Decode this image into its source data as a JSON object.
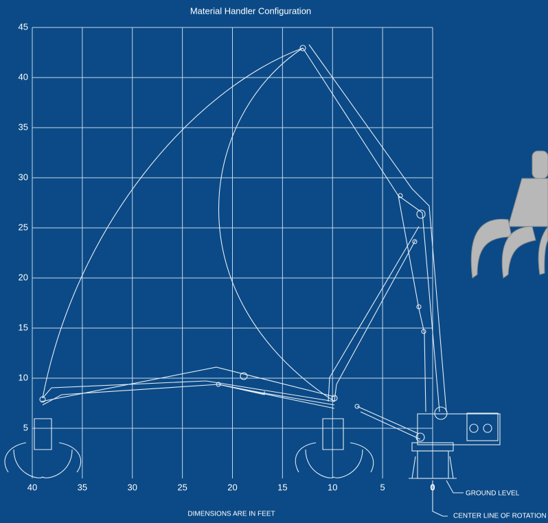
{
  "title": "Material Handler Configuration",
  "grid": {
    "xticks": [
      40,
      35,
      30,
      25,
      20,
      15,
      10,
      5,
      0
    ],
    "yticks": [
      5,
      10,
      15,
      20,
      25,
      30,
      35,
      40,
      45
    ],
    "xlim": [
      40,
      0
    ],
    "ylim": [
      0,
      45
    ]
  },
  "labels": {
    "ground": "GROUND LEVEL",
    "rotation": "CENTER LINE OF ROTATION",
    "units": "DIMENSIONS ARE IN FEET"
  }
}
